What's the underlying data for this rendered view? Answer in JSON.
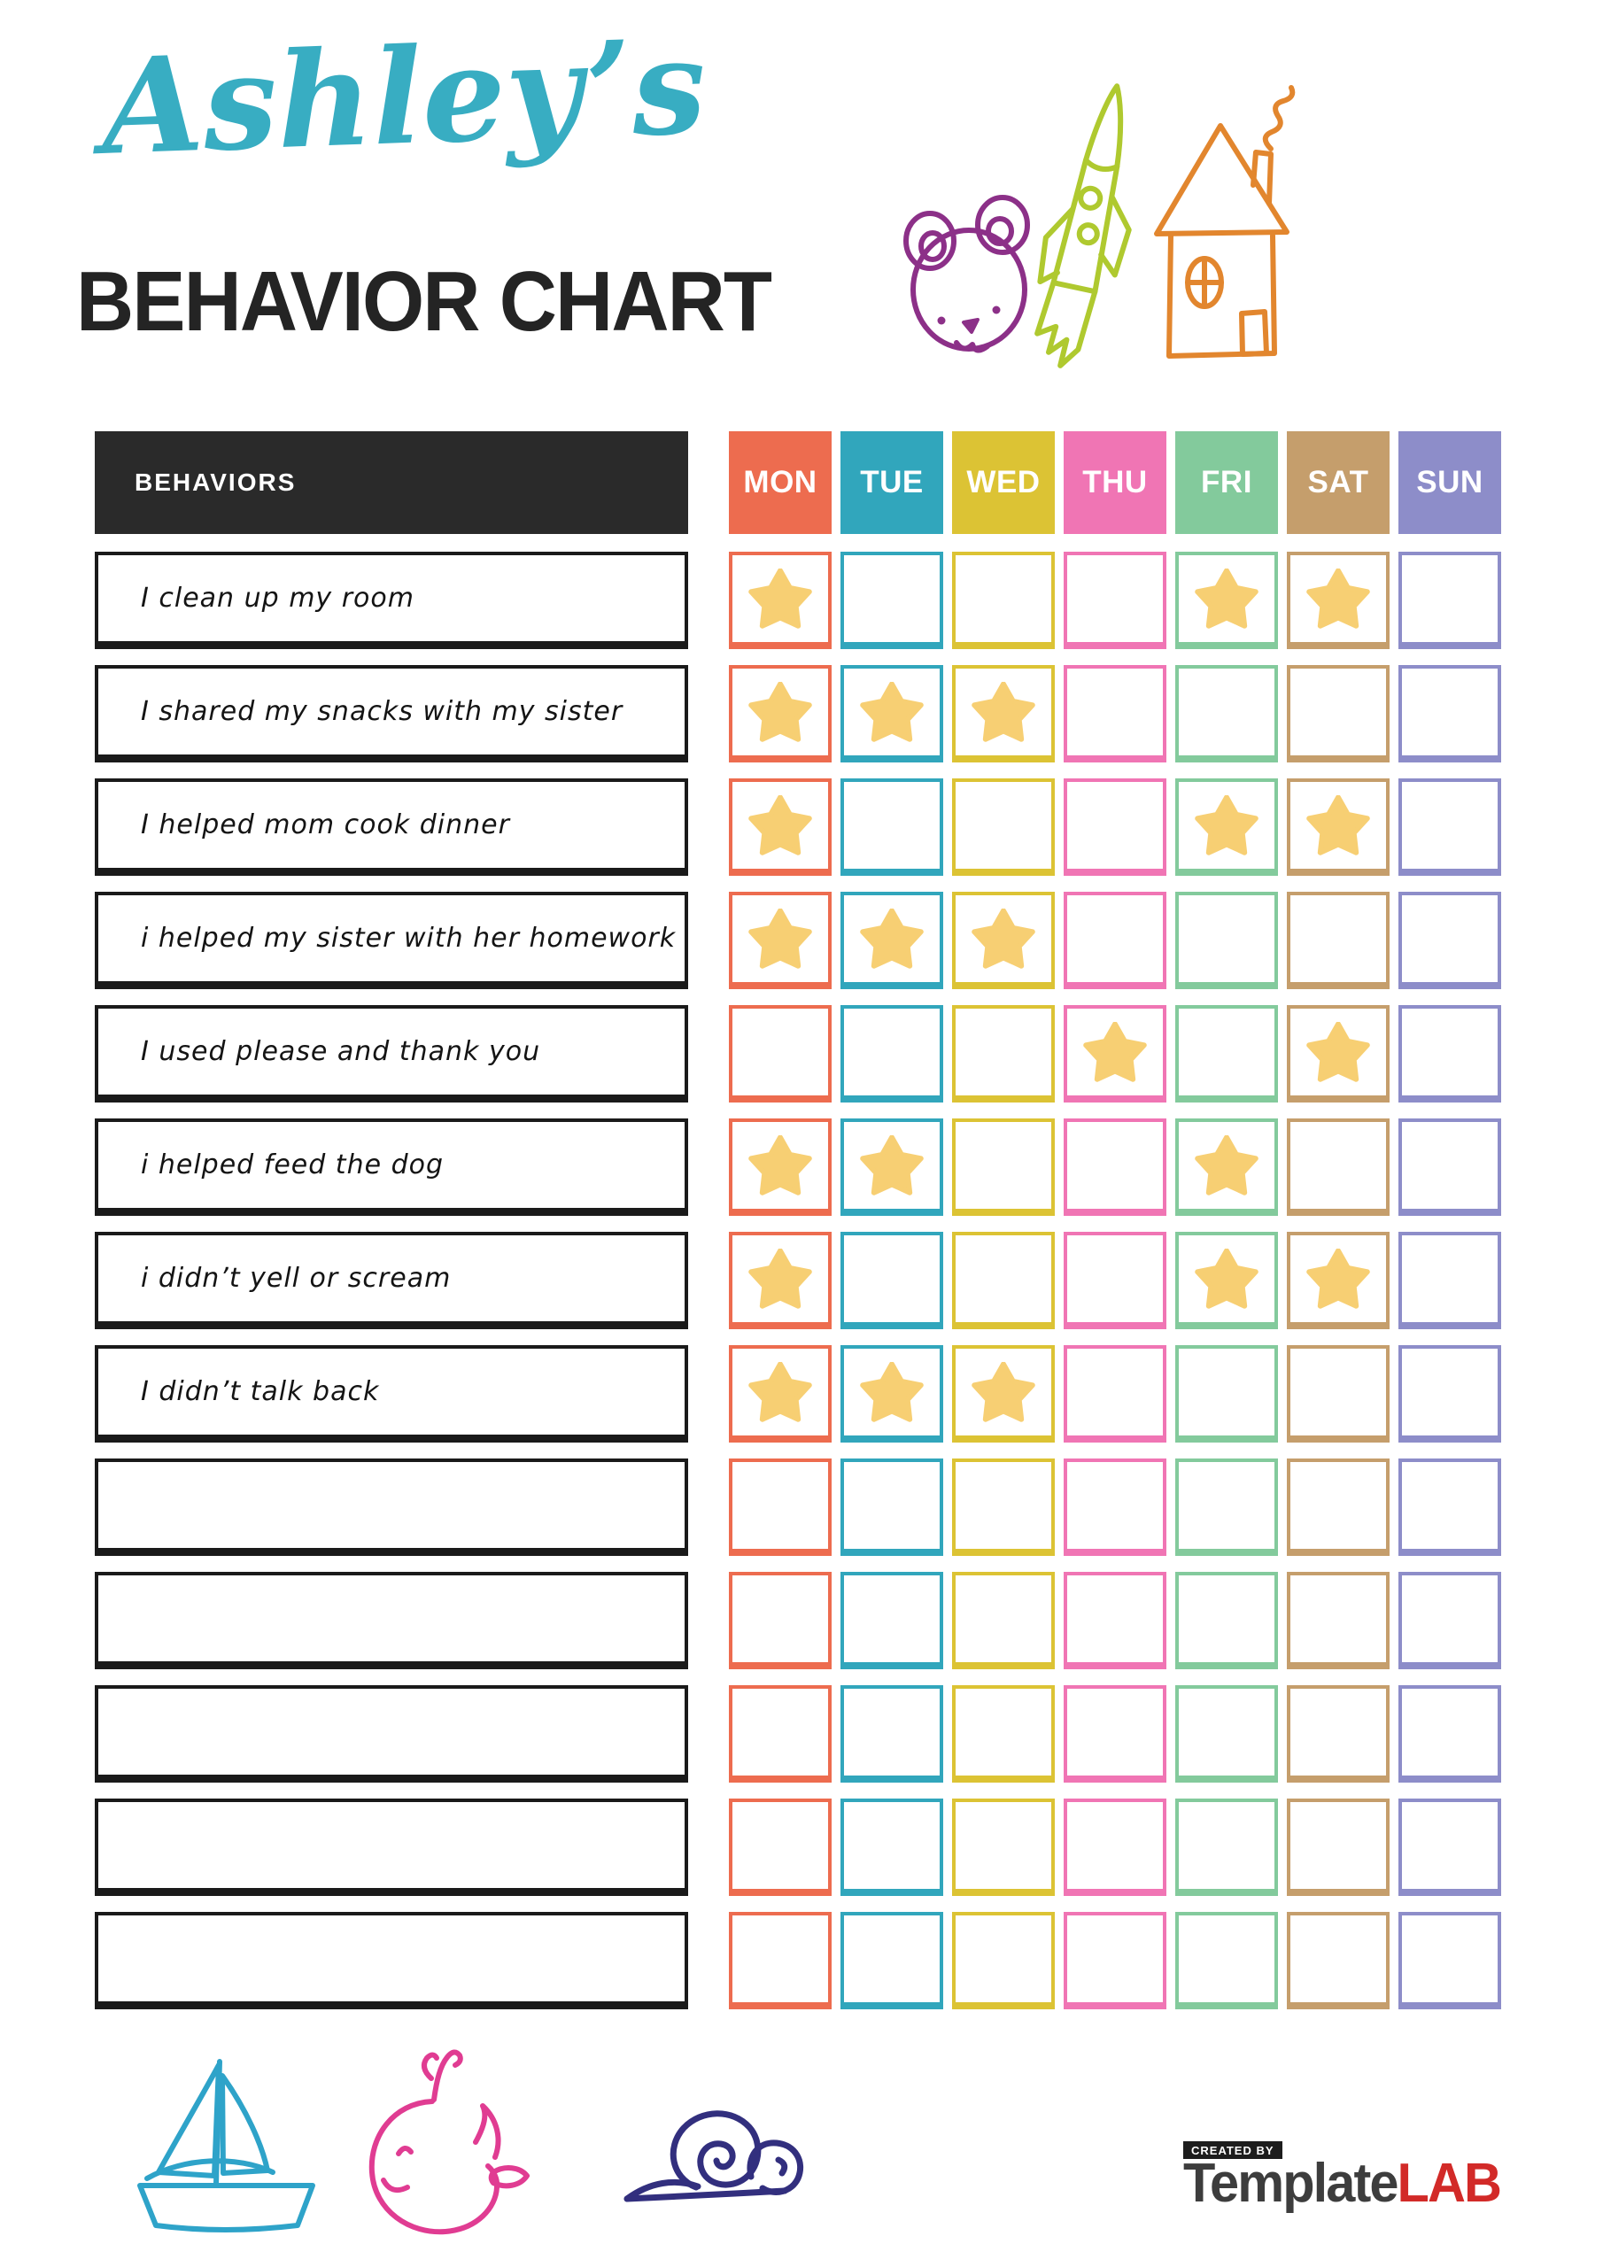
{
  "title": {
    "script": "Ashley’s",
    "script_color": "#38ADC2",
    "heading": "BEHAVIOR CHART",
    "heading_color": "#242424"
  },
  "doodles": {
    "top": [
      {
        "name": "bear",
        "color": "#8C3088"
      },
      {
        "name": "rocket",
        "color": "#AFC92F"
      },
      {
        "name": "house",
        "color": "#E2862E"
      }
    ],
    "bottom": [
      {
        "name": "sailboat",
        "color": "#2EA3C9"
      },
      {
        "name": "whale",
        "color": "#E03C92"
      },
      {
        "name": "snail",
        "color": "#322F7E"
      }
    ]
  },
  "table": {
    "behaviors_header": "BEHAVIORS",
    "header_bg": "#2A2A2A",
    "row_border": "#1A1A1A",
    "star_color": "#F7CF73",
    "days": [
      {
        "label": "MON",
        "color": "#ED6C4F"
      },
      {
        "label": "TUE",
        "color": "#31A6BC"
      },
      {
        "label": "WED",
        "color": "#DCC334"
      },
      {
        "label": "THU",
        "color": "#F075B4"
      },
      {
        "label": "FRI",
        "color": "#83CA9C"
      },
      {
        "label": "SAT",
        "color": "#C59E6C"
      },
      {
        "label": "SUN",
        "color": "#8D8DC9"
      }
    ],
    "rows": [
      {
        "label": "I clean up my room",
        "stars": [
          1,
          0,
          0,
          0,
          1,
          1,
          0
        ]
      },
      {
        "label": "I shared my snacks with my sister",
        "stars": [
          1,
          1,
          1,
          0,
          0,
          0,
          0
        ]
      },
      {
        "label": "I helped mom cook dinner",
        "stars": [
          1,
          0,
          0,
          0,
          1,
          1,
          0
        ]
      },
      {
        "label": "i helped my sister with her homework",
        "stars": [
          1,
          1,
          1,
          0,
          0,
          0,
          0
        ]
      },
      {
        "label": "I used please and thank you",
        "stars": [
          0,
          0,
          0,
          1,
          0,
          1,
          0
        ]
      },
      {
        "label": "i helped feed the dog",
        "stars": [
          1,
          1,
          0,
          0,
          1,
          0,
          0
        ]
      },
      {
        "label": "i didn’t yell or scream",
        "stars": [
          1,
          0,
          0,
          0,
          1,
          1,
          0
        ]
      },
      {
        "label": "I didn’t talk back",
        "stars": [
          1,
          1,
          1,
          0,
          0,
          0,
          0
        ]
      },
      {
        "label": "",
        "stars": [
          0,
          0,
          0,
          0,
          0,
          0,
          0
        ]
      },
      {
        "label": "",
        "stars": [
          0,
          0,
          0,
          0,
          0,
          0,
          0
        ]
      },
      {
        "label": "",
        "stars": [
          0,
          0,
          0,
          0,
          0,
          0,
          0
        ]
      },
      {
        "label": "",
        "stars": [
          0,
          0,
          0,
          0,
          0,
          0,
          0
        ]
      },
      {
        "label": "",
        "stars": [
          0,
          0,
          0,
          0,
          0,
          0,
          0
        ]
      }
    ]
  },
  "footer": {
    "created_by": "CREATED BY",
    "brand_first": "Template",
    "brand_first_color": "#3D3D3D",
    "brand_second": "LAB",
    "brand_second_color": "#D22A28"
  }
}
